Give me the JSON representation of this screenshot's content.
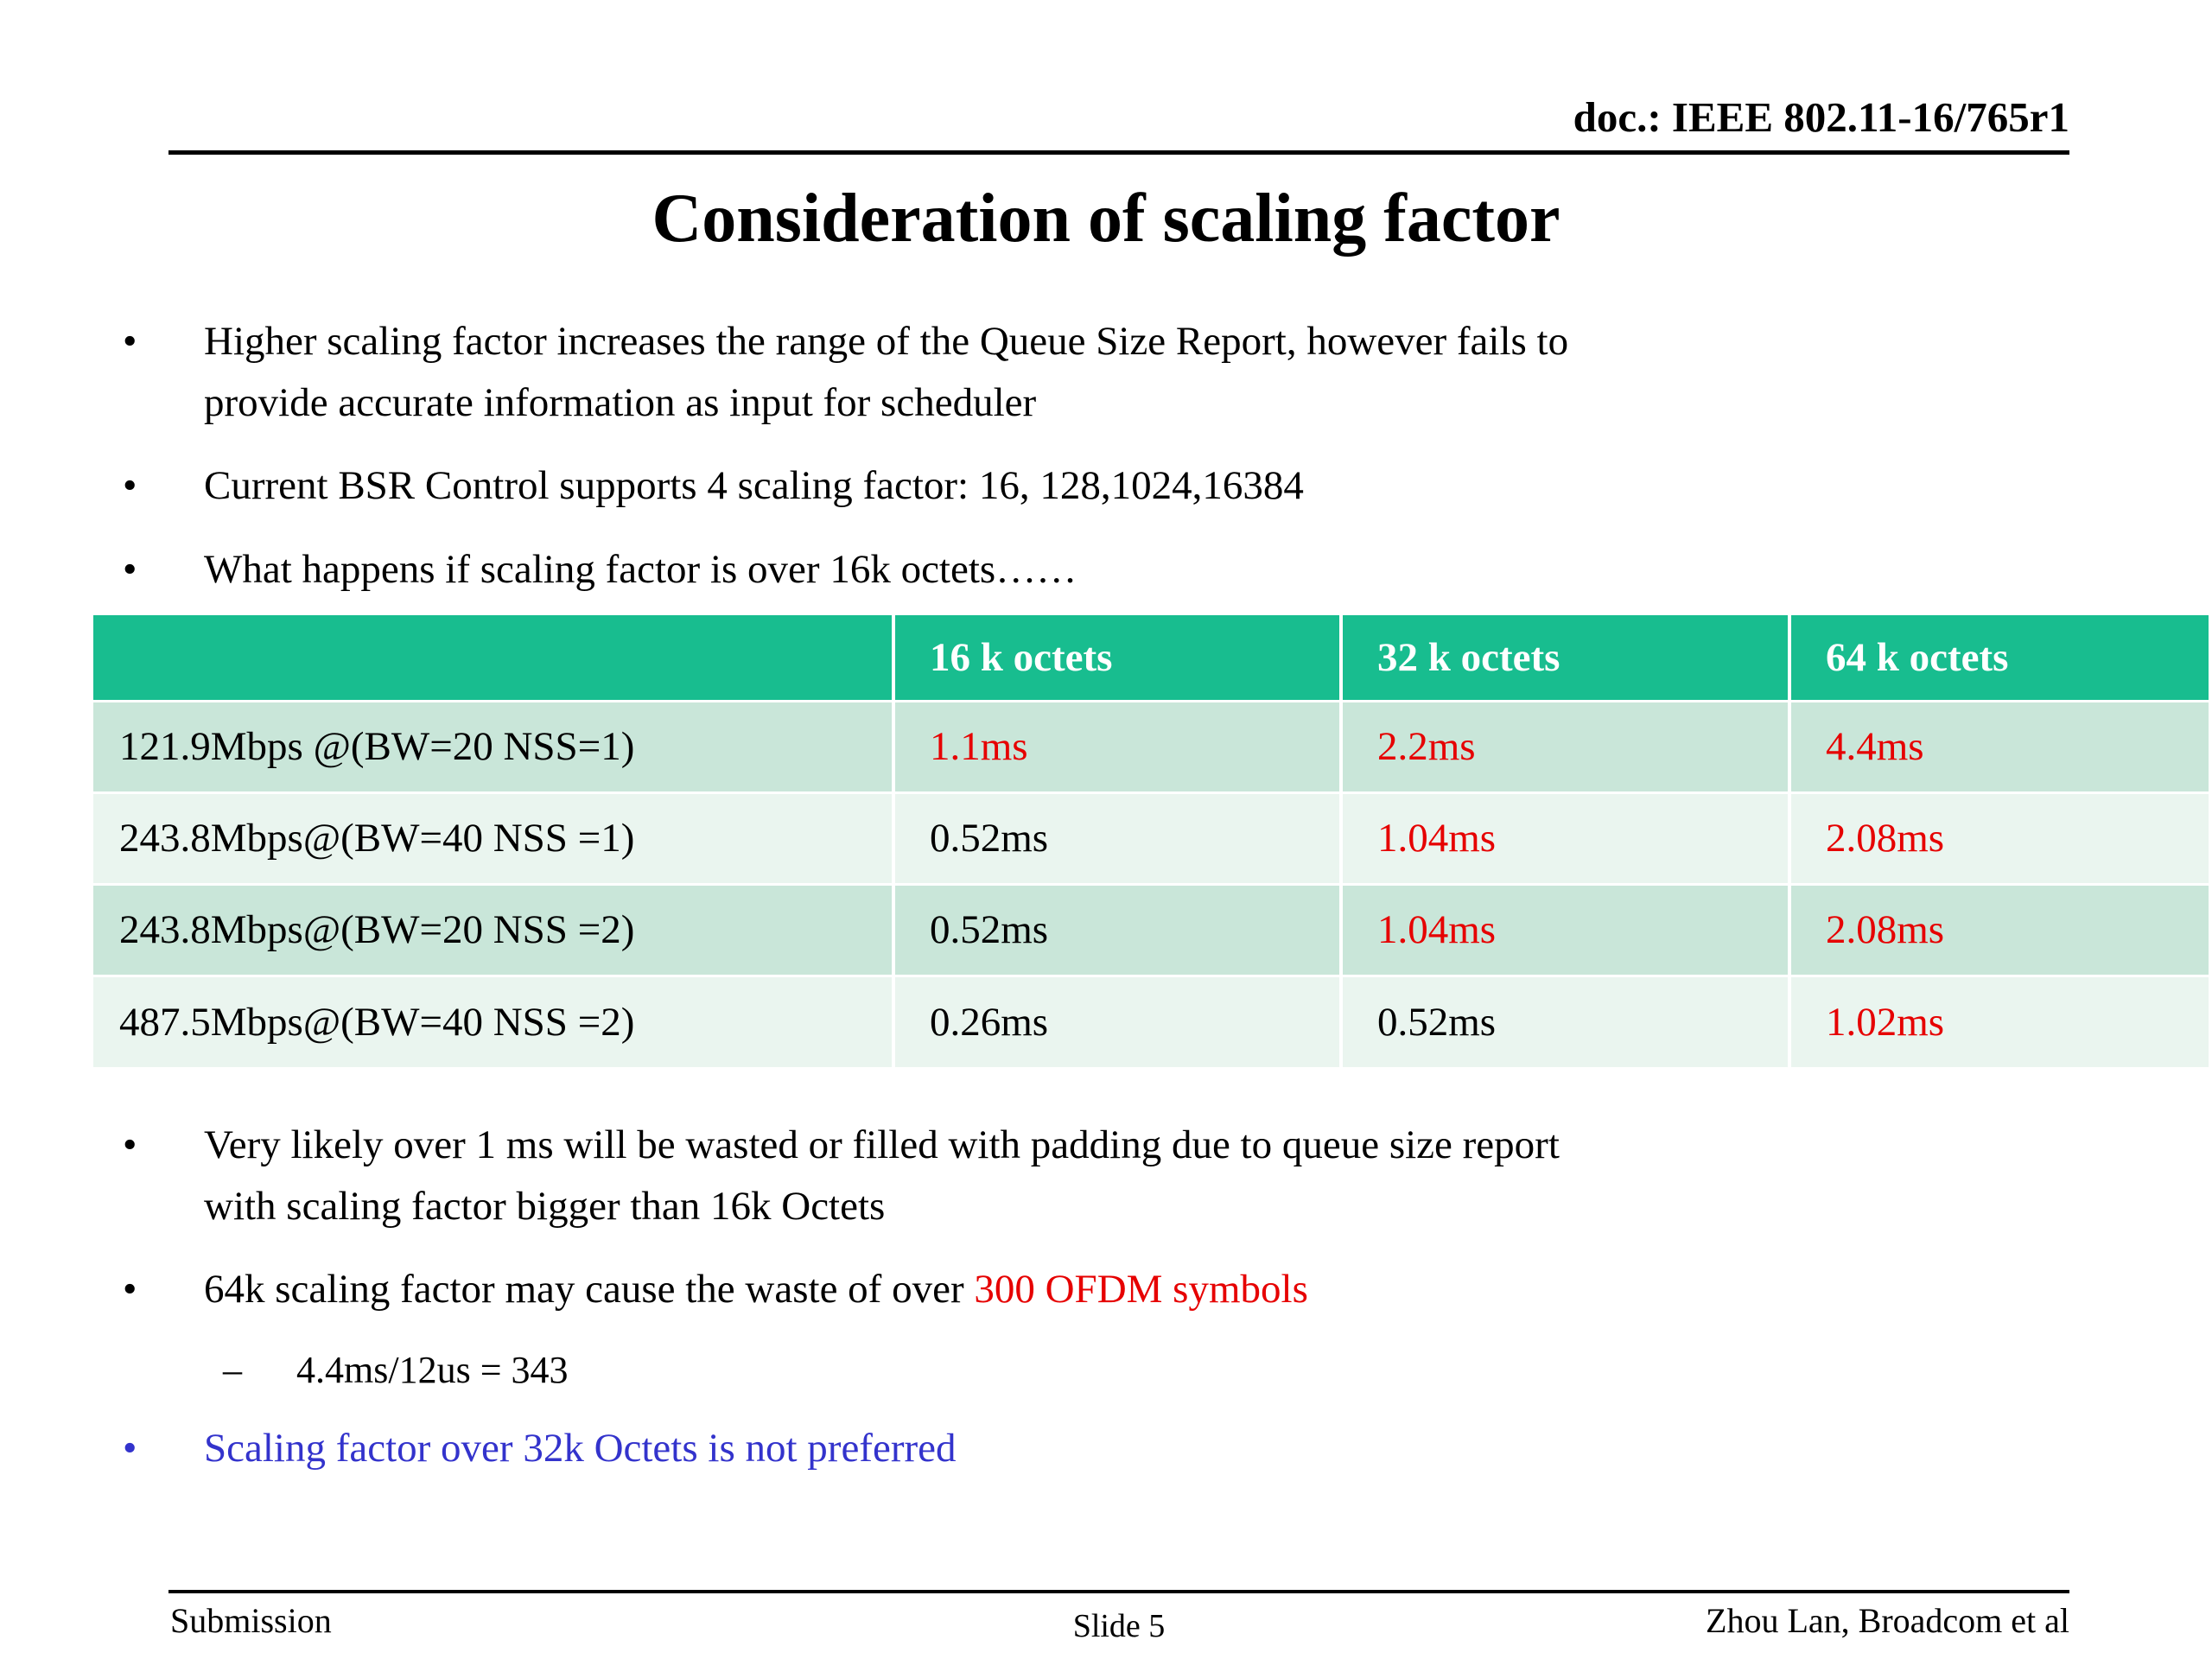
{
  "colors": {
    "header-bg": "#18bd8f",
    "row-odd": "#c9e6d9",
    "row-even": "#eaf5ef",
    "red": "#e60000",
    "blue": "#3333cc"
  },
  "glyphs": {
    "bullet": "•",
    "dash": "–"
  },
  "header": {
    "doc_label": "doc.: IEEE 802.11-16/765r1"
  },
  "title": "Consideration of scaling factor",
  "bullets_top": [
    "Higher scaling factor increases the range of the Queue Size Report, however fails to\nprovide accurate information as input for scheduler",
    "Current BSR Control supports 4 scaling factor: 16, 128,1024,16384",
    "What happens if scaling factor is over 16k octets……"
  ],
  "table": {
    "headers": [
      "",
      "16 k octets",
      "32 k octets",
      "64 k octets"
    ],
    "rows": [
      {
        "label": "121.9Mbps @(BW=20 NSS=1)",
        "cells": [
          {
            "text": "1.1ms",
            "color": "red"
          },
          {
            "text": "2.2ms",
            "color": "red"
          },
          {
            "text": "4.4ms",
            "color": "red"
          }
        ]
      },
      {
        "label": "243.8Mbps@(BW=40 NSS =1)",
        "cells": [
          {
            "text": "0.52ms",
            "color": "black"
          },
          {
            "text": "1.04ms",
            "color": "red"
          },
          {
            "text": "2.08ms",
            "color": "red"
          }
        ]
      },
      {
        "label": "243.8Mbps@(BW=20 NSS =2)",
        "cells": [
          {
            "text": "0.52ms",
            "color": "black"
          },
          {
            "text": "1.04ms",
            "color": "red"
          },
          {
            "text": "2.08ms",
            "color": "red"
          }
        ]
      },
      {
        "label": "487.5Mbps@(BW=40 NSS =2)",
        "cells": [
          {
            "text": "0.26ms",
            "color": "black"
          },
          {
            "text": "0.52ms",
            "color": "black"
          },
          {
            "text": "1.02ms",
            "color": "red"
          }
        ]
      }
    ]
  },
  "bullets_bottom": {
    "b1": "Very likely over 1 ms will be wasted or filled with padding due to queue size report\nwith scaling factor bigger than 16k Octets",
    "b2_normal": "64k scaling factor may cause the waste of over ",
    "b2_red": "300 OFDM symbols",
    "b2_sub": "4.4ms/12us = 343",
    "b3": "Scaling factor over 32k Octets is not preferred"
  },
  "footer": {
    "left": "Submission",
    "center": "Slide 5",
    "right": "Zhou Lan, Broadcom et al"
  }
}
